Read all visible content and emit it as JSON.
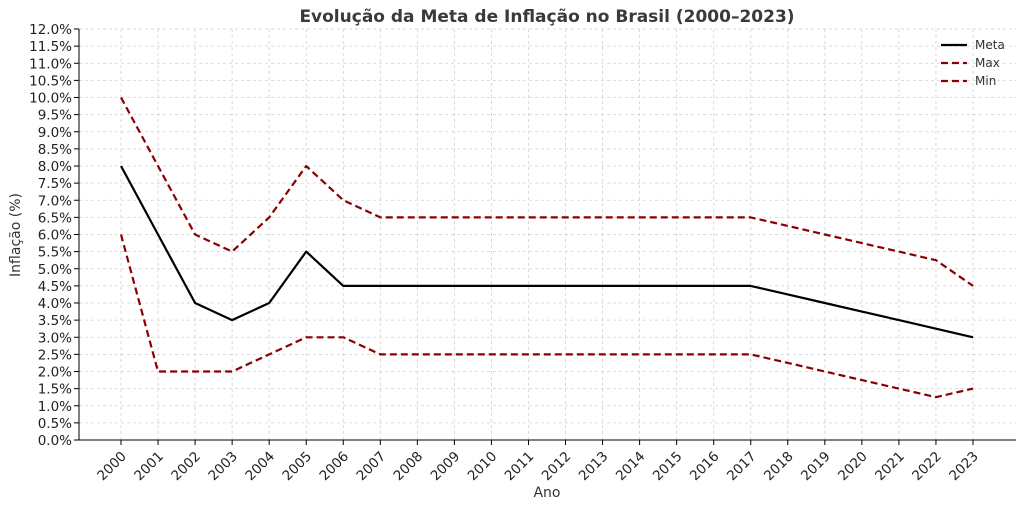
{
  "chart_data": {
    "type": "line",
    "title": "Evolução da Meta de Inflação no Brasil (2000–2023)",
    "xlabel": "Ano",
    "ylabel": "Inflação (%)",
    "x": [
      2000,
      2001,
      2002,
      2003,
      2004,
      2005,
      2006,
      2007,
      2008,
      2009,
      2010,
      2011,
      2012,
      2013,
      2014,
      2015,
      2016,
      2017,
      2018,
      2019,
      2020,
      2021,
      2022,
      2023
    ],
    "ylim": [
      0,
      12
    ],
    "ytick_step": 0.5,
    "grid": true,
    "legend_position": "top-right",
    "series": [
      {
        "name": "Meta",
        "color": "#000000",
        "style": "solid",
        "values": [
          8.0,
          6.0,
          4.0,
          3.5,
          4.0,
          5.5,
          4.5,
          4.5,
          4.5,
          4.5,
          4.5,
          4.5,
          4.5,
          4.5,
          4.5,
          4.5,
          4.5,
          4.5,
          4.25,
          4.0,
          3.75,
          3.5,
          3.25,
          3.0
        ]
      },
      {
        "name": "Max",
        "color": "#8b0000",
        "style": "dashed",
        "values": [
          10.0,
          8.0,
          6.0,
          5.5,
          6.5,
          8.0,
          7.0,
          6.5,
          6.5,
          6.5,
          6.5,
          6.5,
          6.5,
          6.5,
          6.5,
          6.5,
          6.5,
          6.5,
          6.25,
          6.0,
          5.75,
          5.5,
          5.25,
          4.5
        ]
      },
      {
        "name": "Min",
        "color": "#8b0000",
        "style": "dashed",
        "values": [
          6.0,
          2.0,
          2.0,
          2.0,
          2.5,
          3.0,
          3.0,
          2.5,
          2.5,
          2.5,
          2.5,
          2.5,
          2.5,
          2.5,
          2.5,
          2.5,
          2.5,
          2.5,
          2.25,
          2.0,
          1.75,
          1.5,
          1.25,
          1.5
        ]
      }
    ]
  }
}
